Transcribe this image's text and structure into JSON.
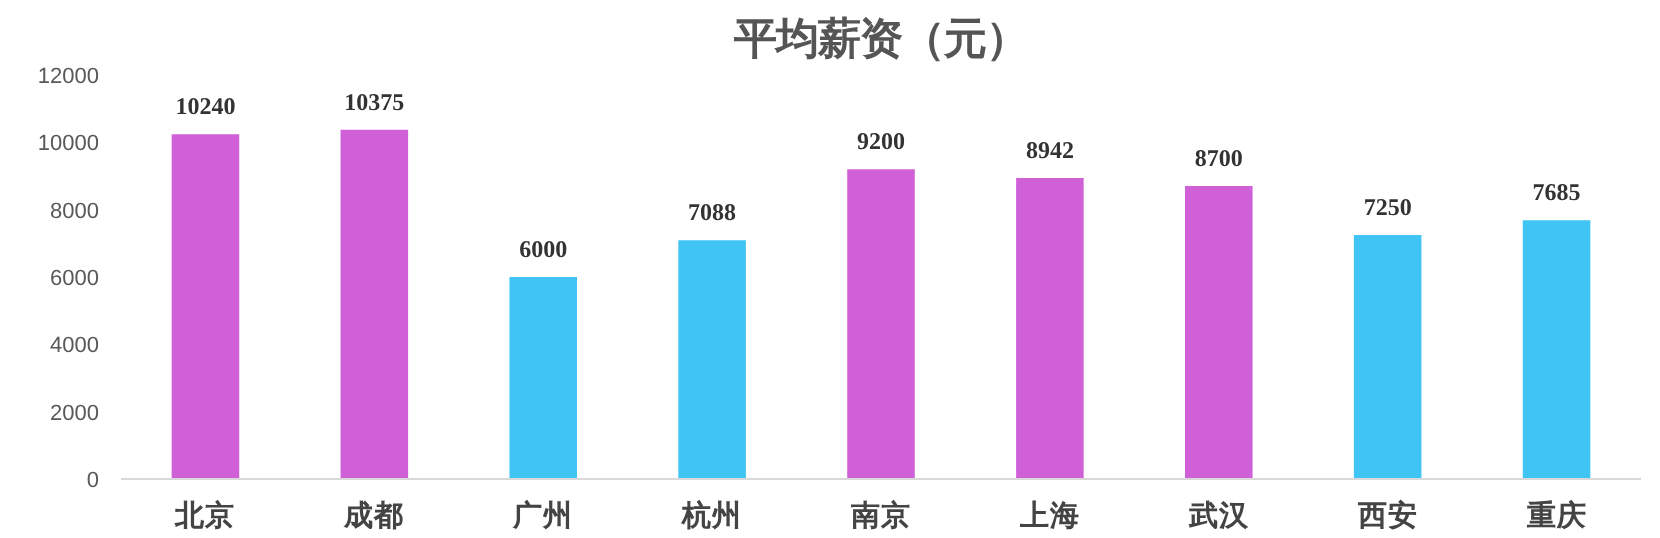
{
  "chart_data": {
    "type": "bar",
    "title": "平均薪资（元）",
    "categories": [
      "北京",
      "成都",
      "广州",
      "杭州",
      "南京",
      "上海",
      "武汉",
      "西安",
      "重庆"
    ],
    "values": [
      10240,
      10375,
      6000,
      7088,
      9200,
      8942,
      8700,
      7250,
      7685
    ],
    "colors": [
      "#d060d8",
      "#d060d8",
      "#40c4f4",
      "#40c4f4",
      "#d060d8",
      "#d060d8",
      "#d060d8",
      "#40c4f4",
      "#40c4f4"
    ],
    "ylim": [
      0,
      12000
    ],
    "yticks": [
      0,
      2000,
      4000,
      6000,
      8000,
      10000,
      12000
    ],
    "data_labels": true,
    "grid": false
  }
}
